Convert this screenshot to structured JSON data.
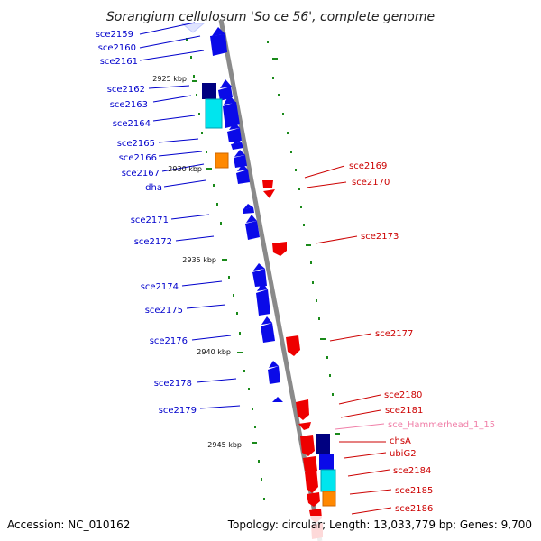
{
  "title": "Sorangium cellulosum 'So ce 56', complete genome",
  "footer": {
    "accession": "Accession: NC_010162",
    "topology": "Topology: circular; Length: 13,033,779 bp; Genes: 9,700"
  },
  "kbp_marks": [
    "2925 kbp",
    "2930 kbp",
    "2935 kbp",
    "2940 kbp",
    "2945 kbp"
  ],
  "left_labels": [
    "sce2159",
    "sce2160",
    "sce2161",
    "sce2162",
    "sce2163",
    "sce2164",
    "sce2165",
    "sce2166",
    "sce2167",
    "dha",
    "sce2171",
    "sce2172",
    "sce2174",
    "sce2175",
    "sce2176",
    "sce2178",
    "sce2179"
  ],
  "right_labels": [
    "sce2169",
    "sce2170",
    "sce2173",
    "sce2177",
    "sce2180",
    "sce2181",
    "sce_Hammerhead_1_15",
    "chsA",
    "ubiG2",
    "sce2184",
    "sce2185",
    "sce2186"
  ],
  "colors": {
    "forward_gene": "#0000ee",
    "reverse_gene": "#ee0000",
    "cyan_feature": "#00e5ee",
    "navy_feature": "#000080",
    "orange_feature": "#ff8800",
    "backbone": "#888888",
    "tick": "#008800"
  }
}
